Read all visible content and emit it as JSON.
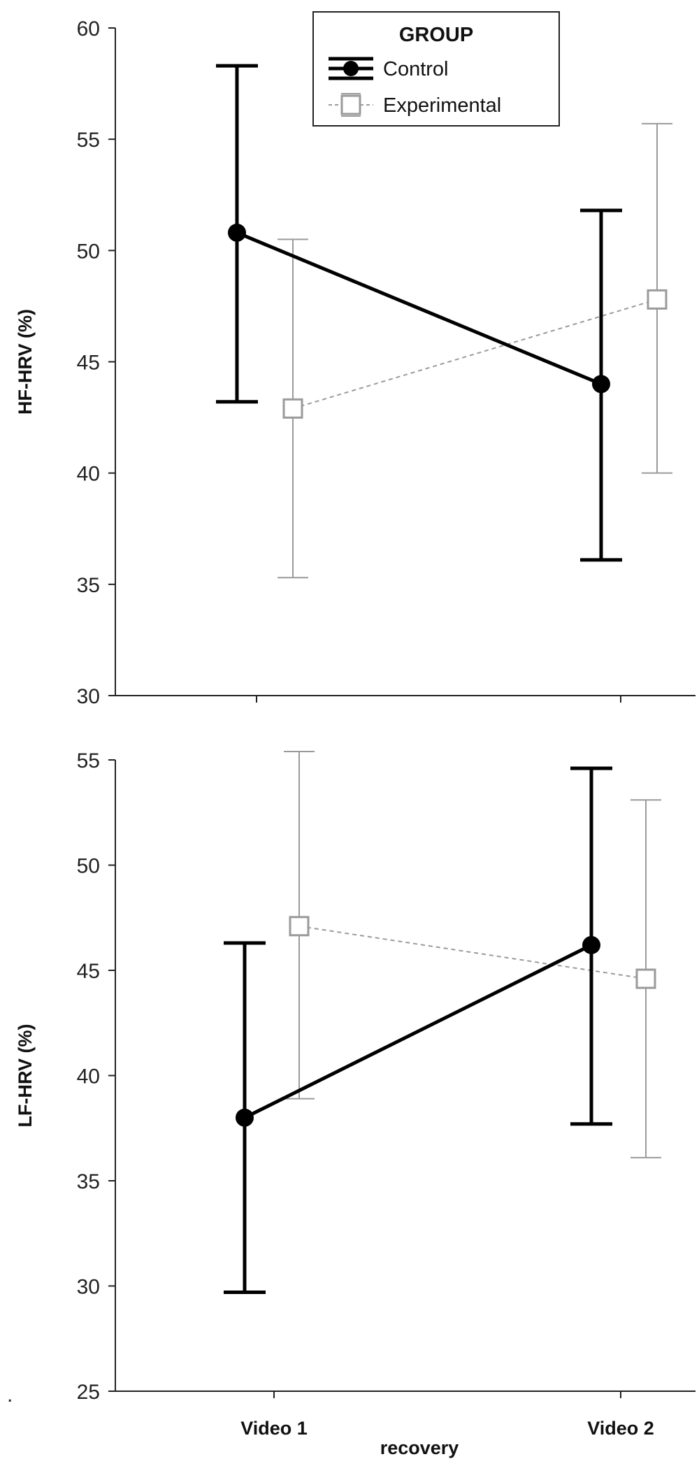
{
  "chart_data": [
    {
      "type": "line",
      "ylabel": "HF-HRV (%)",
      "ylim": [
        30,
        60
      ],
      "yticks": [
        30,
        35,
        40,
        45,
        50,
        55,
        60
      ],
      "categories": [
        "Video 1",
        "Video 2"
      ],
      "grid": false,
      "legend": {
        "title": "GROUP",
        "placement": "top-center",
        "entries": [
          "Control",
          "Experimental"
        ]
      },
      "series": [
        {
          "name": "Control",
          "values": [
            50.8,
            44.0
          ],
          "error_low": [
            43.2,
            36.1
          ],
          "error_high": [
            58.3,
            51.8
          ],
          "color": "#000000",
          "marker": "filled-circle",
          "line": "solid"
        },
        {
          "name": "Experimental",
          "values": [
            42.9,
            47.8
          ],
          "error_low": [
            35.3,
            40.0
          ],
          "error_high": [
            50.5,
            55.7
          ],
          "color": "#9a9a9a",
          "marker": "open-square",
          "line": "dashed"
        }
      ]
    },
    {
      "type": "line",
      "ylabel": "LF-HRV (%)",
      "xlabel": "recovery",
      "ylim": [
        25,
        55
      ],
      "yticks": [
        25,
        30,
        35,
        40,
        45,
        50,
        55
      ],
      "categories": [
        "Video 1",
        "Video 2"
      ],
      "grid": false,
      "series": [
        {
          "name": "Control",
          "values": [
            38.0,
            46.2
          ],
          "error_low": [
            29.7,
            37.7
          ],
          "error_high": [
            46.3,
            54.6
          ],
          "color": "#000000",
          "marker": "filled-circle",
          "line": "solid"
        },
        {
          "name": "Experimental",
          "values": [
            47.1,
            44.6
          ],
          "error_low": [
            38.9,
            36.1
          ],
          "error_high": [
            55.4,
            53.1
          ],
          "color": "#9a9a9a",
          "marker": "open-square",
          "line": "dashed"
        }
      ]
    }
  ],
  "footnote_mark": "."
}
